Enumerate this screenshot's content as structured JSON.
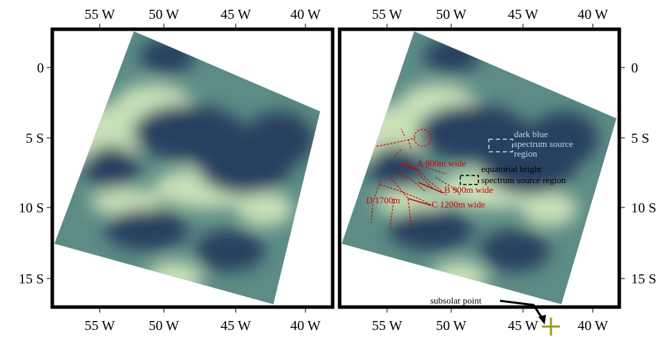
{
  "axes": {
    "x_ticks": [
      "55 W",
      "50 W",
      "45 W",
      "40 W"
    ],
    "y_ticks": [
      "0",
      "5 S",
      "10 S",
      "15 S"
    ]
  },
  "annotations": {
    "dark_blue": [
      "dark blue",
      "spectrum source",
      "region"
    ],
    "bright": [
      "equatorial bright",
      "spectrum source region"
    ],
    "channels": [
      "A 800m wide",
      "B 900m wide",
      "C 1200m wide",
      "D 1700m"
    ],
    "subsolar": "subsolar point"
  }
}
